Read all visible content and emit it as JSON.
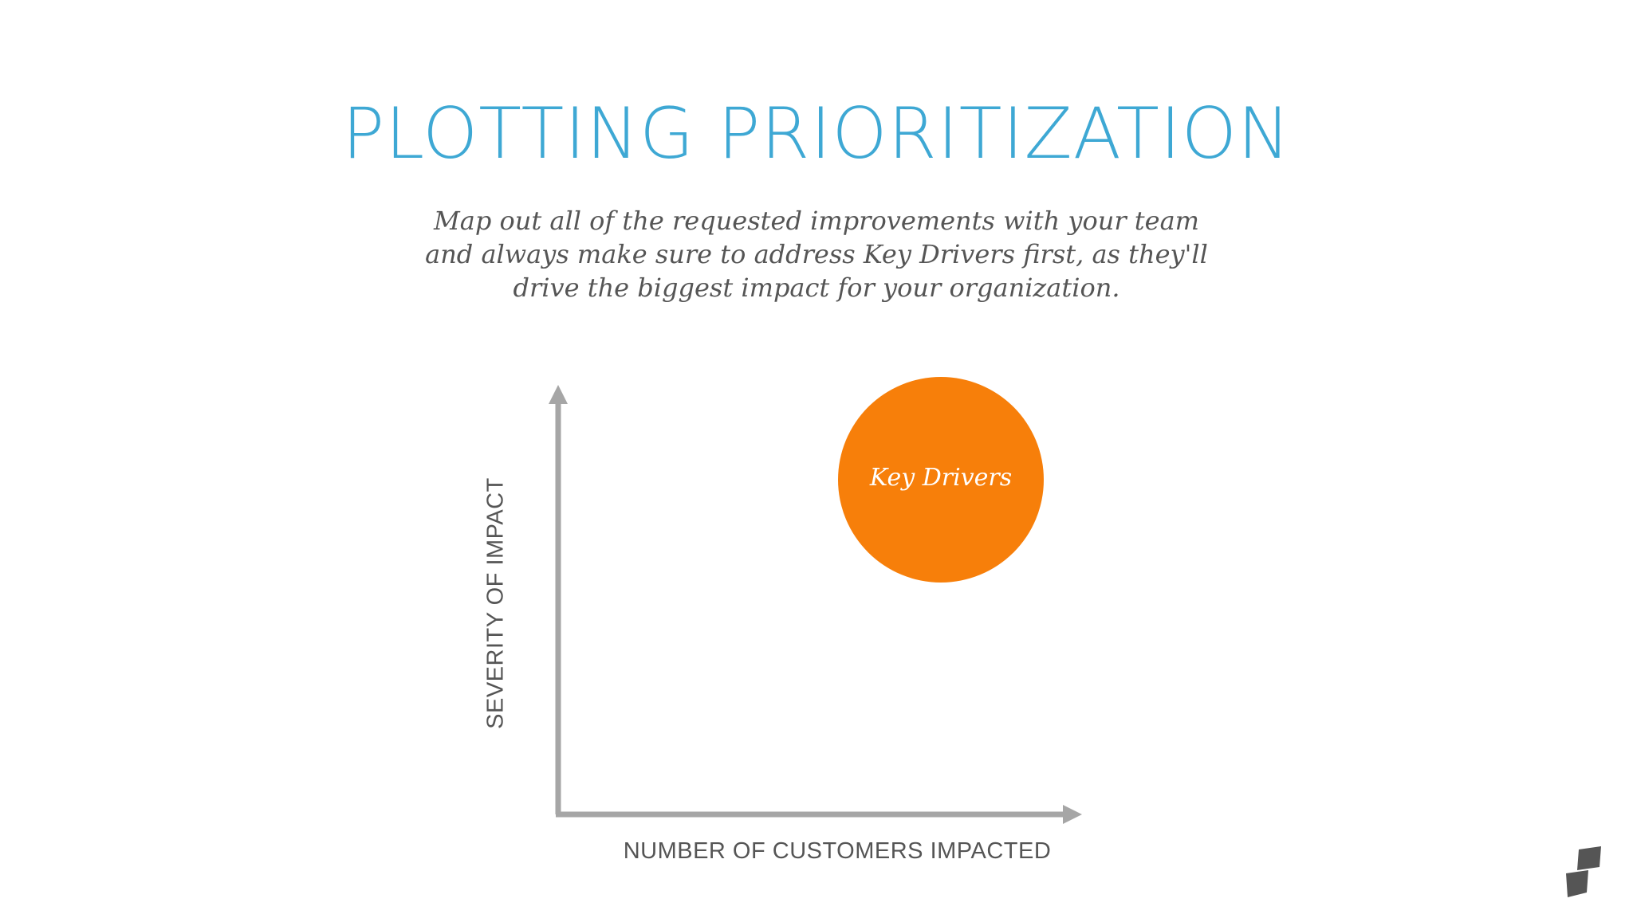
{
  "slide": {
    "title": "PLOTTING PRIORITIZATION",
    "subtitle_lines": [
      "Map out all of the requested improvements with your team",
      "and always make sure to address Key Drivers first, as they'll",
      "drive the biggest impact for your organization."
    ]
  },
  "diagram": {
    "y_axis_label": "SEVERITY OF IMPACT",
    "x_axis_label": "NUMBER OF CUSTOMERS IMPACTED",
    "bubble_label": "Key Drivers"
  },
  "colors": {
    "title": "#3ea8d4",
    "bubble": "#f77f0a",
    "axis": "#a6a6a6",
    "text": "#555555",
    "logo": "#555555"
  },
  "icons": {
    "logo": "brand-logo-icon"
  }
}
